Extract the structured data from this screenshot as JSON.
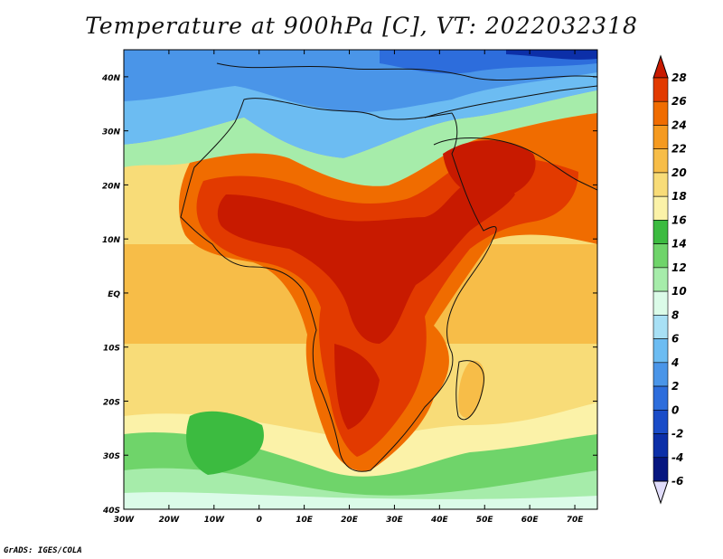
{
  "title": "Temperature at 900hPa [C], VT: 2022032318",
  "footer": "GrADS: IGES/COLA",
  "map": {
    "lon_range": [
      -30,
      75
    ],
    "lat_range": [
      -40,
      45
    ],
    "lat_ticks": [
      "40N",
      "30N",
      "20N",
      "10N",
      "EQ",
      "10S",
      "20S",
      "30S",
      "40S"
    ],
    "lat_values": [
      40,
      30,
      20,
      10,
      0,
      -10,
      -20,
      -30,
      -40
    ],
    "lon_ticks": [
      "30W",
      "20W",
      "10W",
      "0",
      "10E",
      "20E",
      "30E",
      "40E",
      "50E",
      "60E",
      "70E"
    ],
    "lon_values": [
      -30,
      -20,
      -10,
      0,
      10,
      20,
      30,
      40,
      50,
      60,
      70
    ]
  },
  "colorbar": {
    "labels": [
      "28",
      "26",
      "24",
      "22",
      "20",
      "18",
      "16",
      "14",
      "12",
      "10",
      "8",
      "6",
      "4",
      "2",
      "0",
      "-2",
      "-4",
      "-6"
    ],
    "colors": [
      "#c81a00",
      "#e23a00",
      "#f06c00",
      "#f59a20",
      "#f7bd48",
      "#f8dc78",
      "#fbf2a8",
      "#3cbb40",
      "#6fd46a",
      "#a6ecaa",
      "#dbfbe8",
      "#a8e0f5",
      "#6cbcf2",
      "#4a95e8",
      "#2d6ddc",
      "#1a4cc8",
      "#0c2fa8",
      "#061680",
      "#e0dcfa"
    ]
  }
}
